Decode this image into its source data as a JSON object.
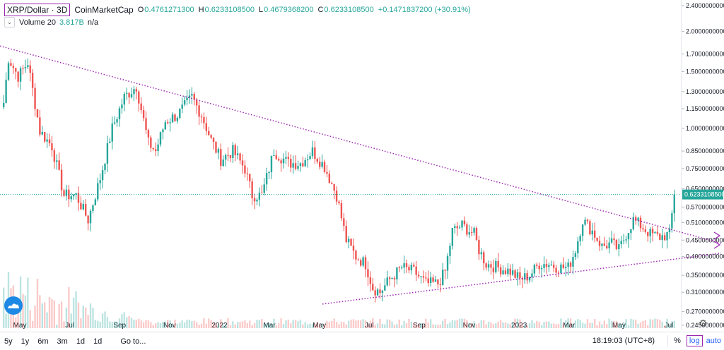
{
  "legend": {
    "symbol": "XRP/Dollar · 3D",
    "source": "CoinMarketCap",
    "ohlc": [
      {
        "label": "O",
        "value": "0.4761271300"
      },
      {
        "label": "H",
        "value": "0.6233108500"
      },
      {
        "label": "L",
        "value": "0.4679368200"
      },
      {
        "label": "C",
        "value": "0.6233108500"
      }
    ],
    "change": "+0.1471837200 (+30.91%)",
    "volume_label": "Volume 20",
    "volume_value": "3.817B",
    "volume_na": "n/a"
  },
  "colors": {
    "up": "#26a69a",
    "down": "#ef5350",
    "trendline": "#9c27b0",
    "last_price": "#26a69a"
  },
  "chart_data": {
    "type": "candlestick",
    "scale": "log",
    "ylim": [
      0.24,
      2.5
    ],
    "x_labels": [
      "May",
      "Jul",
      "Sep",
      "Nov",
      "2022",
      "Mar",
      "May",
      "Jul",
      "Sep",
      "Nov",
      "2023",
      "Mar",
      "May",
      "Jul"
    ],
    "y_ticks": [
      "2.4000000000",
      "2.0000000000",
      "1.7000000000",
      "1.5000000000",
      "1.3000000000",
      "1.1500000000",
      "1.0000000000",
      "0.8500000000",
      "0.7500000000",
      "0.6500000000",
      "0.5700000000",
      "0.5100000000",
      "0.4500000000",
      "0.4000000000",
      "0.3500000000",
      "0.3100000000",
      "0.2700000000",
      "0.2450000000"
    ],
    "last_price": "0.6233108500",
    "anchors": [
      [
        0,
        1.2
      ],
      [
        2,
        1.65
      ],
      [
        6,
        1.45
      ],
      [
        10,
        1.6
      ],
      [
        15,
        0.98
      ],
      [
        20,
        0.88
      ],
      [
        25,
        0.62
      ],
      [
        30,
        0.62
      ],
      [
        35,
        0.52
      ],
      [
        40,
        0.7
      ],
      [
        45,
        1.0
      ],
      [
        50,
        1.25
      ],
      [
        55,
        1.35
      ],
      [
        60,
        0.9
      ],
      [
        63,
        0.85
      ],
      [
        67,
        1.05
      ],
      [
        72,
        1.1
      ],
      [
        78,
        1.25
      ],
      [
        82,
        1.1
      ],
      [
        86,
        0.92
      ],
      [
        90,
        0.8
      ],
      [
        95,
        0.85
      ],
      [
        100,
        0.75
      ],
      [
        103,
        0.62
      ],
      [
        107,
        0.62
      ],
      [
        112,
        0.85
      ],
      [
        118,
        0.78
      ],
      [
        123,
        0.78
      ],
      [
        128,
        0.85
      ],
      [
        133,
        0.76
      ],
      [
        138,
        0.62
      ],
      [
        142,
        0.45
      ],
      [
        146,
        0.4
      ],
      [
        150,
        0.38
      ],
      [
        153,
        0.32
      ],
      [
        156,
        0.31
      ],
      [
        160,
        0.34
      ],
      [
        165,
        0.37
      ],
      [
        170,
        0.36
      ],
      [
        175,
        0.33
      ],
      [
        180,
        0.33
      ],
      [
        183,
        0.36
      ],
      [
        186,
        0.48
      ],
      [
        190,
        0.5
      ],
      [
        195,
        0.47
      ],
      [
        197,
        0.42
      ],
      [
        200,
        0.38
      ],
      [
        205,
        0.37
      ],
      [
        210,
        0.36
      ],
      [
        214,
        0.34
      ],
      [
        218,
        0.35
      ],
      [
        222,
        0.38
      ],
      [
        226,
        0.38
      ],
      [
        230,
        0.37
      ],
      [
        234,
        0.37
      ],
      [
        237,
        0.42
      ],
      [
        240,
        0.52
      ],
      [
        244,
        0.48
      ],
      [
        248,
        0.43
      ],
      [
        252,
        0.44
      ],
      [
        255,
        0.42
      ],
      [
        258,
        0.47
      ],
      [
        261,
        0.52
      ],
      [
        264,
        0.5
      ],
      [
        268,
        0.47
      ],
      [
        272,
        0.46
      ],
      [
        276,
        0.47
      ],
      [
        278,
        0.62
      ]
    ]
  },
  "bottom": {
    "ranges": [
      "5y",
      "1y",
      "6m",
      "3m",
      "1d",
      "1d"
    ],
    "goto": "Go to...",
    "clock": "18:19:03 (UTC+8)",
    "percent": "%",
    "log": "log",
    "auto": "auto"
  }
}
